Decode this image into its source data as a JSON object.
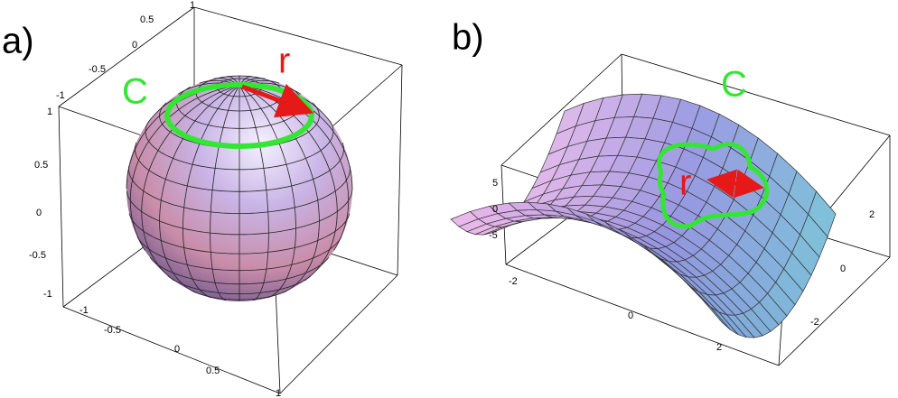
{
  "panels": [
    {
      "label": "a)",
      "curve_label": "C",
      "radius_label": "r",
      "ticks_top": [
        "-1",
        "-0.5",
        "0",
        "0.5",
        "1"
      ],
      "ticks_left": [
        "1",
        "0.5",
        "0",
        "-0.5",
        "-1"
      ],
      "ticks_bottom": [
        "-1",
        "-0.5",
        "0",
        "0.5",
        "1"
      ]
    },
    {
      "label": "b)",
      "curve_label": "C",
      "radius_label": "r",
      "ticks_left": [
        "5",
        "0",
        "-5"
      ],
      "ticks_bottom": [
        "-2",
        "0",
        "2"
      ],
      "ticks_right": [
        "2",
        "0",
        "-2"
      ]
    }
  ]
}
